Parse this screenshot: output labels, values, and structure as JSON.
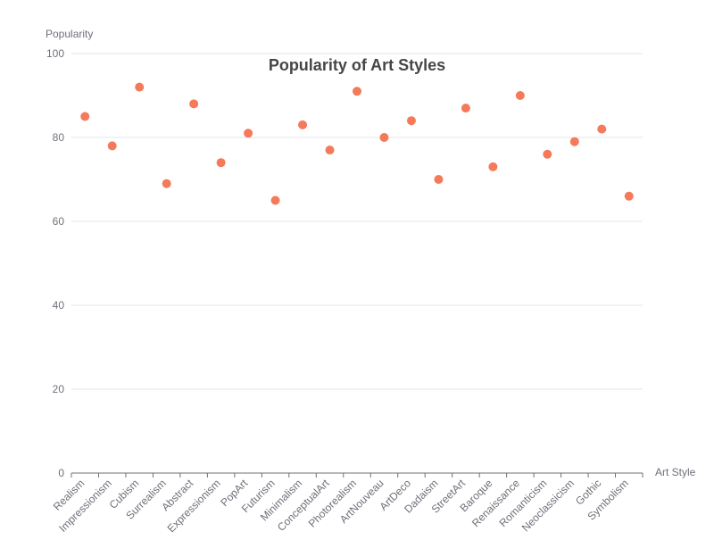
{
  "chart_data": {
    "type": "scatter",
    "title": "Popularity of Art Styles",
    "xlabel": "Art Style",
    "ylabel": "Popularity",
    "ylim": [
      0,
      100
    ],
    "yticks": [
      "0",
      "20",
      "40",
      "60",
      "80",
      "100"
    ],
    "grid": true,
    "point_color": "#f47a5a",
    "categories": [
      "Realism",
      "Impressionism",
      "Cubism",
      "Surrealism",
      "Abstract",
      "Expressionism",
      "PopArt",
      "Futurism",
      "Minimalism",
      "ConceptualArt",
      "Photorealism",
      "ArtNouveau",
      "ArtDeco",
      "Dadaism",
      "StreetArt",
      "Baroque",
      "Renaissance",
      "Romanticism",
      "Neoclassicism",
      "Gothic",
      "Symbolism"
    ],
    "values": [
      85,
      78,
      92,
      69,
      88,
      74,
      81,
      65,
      83,
      77,
      91,
      80,
      84,
      70,
      87,
      73,
      90,
      76,
      79,
      82,
      66
    ]
  }
}
